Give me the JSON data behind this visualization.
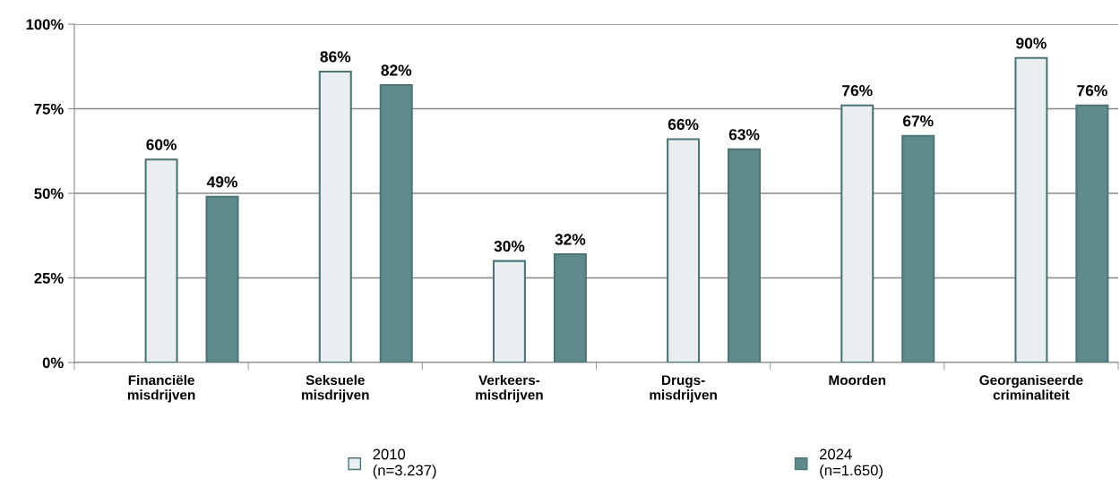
{
  "chart_data": {
    "type": "bar",
    "categories": [
      "Financiële\nmisdrijven",
      "Seksuele\nmisdrijven",
      "Verkeers-\nmisdrijven",
      "Drugs-\nmisdrijven",
      "Moorden",
      "Georganiseerde\ncriminaliteit"
    ],
    "series": [
      {
        "name": "2010\n(n=3.237)",
        "color": "#e9eef0",
        "values": [
          60,
          86,
          30,
          66,
          76,
          90
        ],
        "value_labels": [
          "60%",
          "86%",
          "30%",
          "66%",
          "76%",
          "90%"
        ]
      },
      {
        "name": "2024\n(n=1.650)",
        "color": "#5f8b8d",
        "values": [
          49,
          82,
          32,
          63,
          67,
          76
        ],
        "value_labels": [
          "49%",
          "82%",
          "32%",
          "63%",
          "67%",
          "76%"
        ]
      }
    ],
    "ylim": [
      0,
      100
    ],
    "yticks": [
      {
        "value": 0,
        "label": "0%"
      },
      {
        "value": 25,
        "label": "25%"
      },
      {
        "value": 50,
        "label": "50%"
      },
      {
        "value": 75,
        "label": "75%"
      },
      {
        "value": 100,
        "label": "100%"
      }
    ],
    "grid": "y",
    "legend": "bottom"
  }
}
